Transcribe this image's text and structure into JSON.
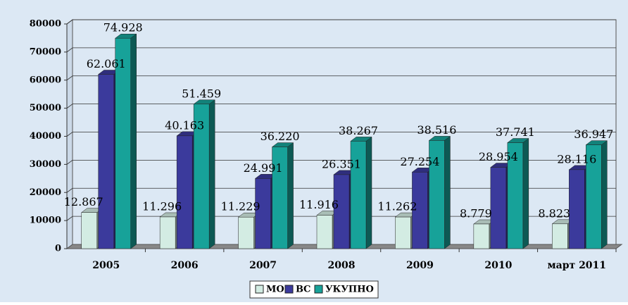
{
  "chart_data": {
    "type": "bar3d",
    "categories": [
      "2005",
      "2006",
      "2007",
      "2008",
      "2009",
      "2010",
      "март 2011"
    ],
    "series": [
      {
        "name": "МО",
        "color": "#d3ece3",
        "values": [
          12867,
          11296,
          11229,
          11916,
          11262,
          8779,
          8823
        ],
        "value_labels": [
          "12.867",
          "11.296",
          "11.229",
          "11.916",
          "11.262",
          "8.779",
          "8.823"
        ]
      },
      {
        "name": "ВС",
        "color": "#3b3a9c",
        "values": [
          62061,
          40163,
          24991,
          26351,
          27254,
          28954,
          28116
        ],
        "value_labels": [
          "62.061",
          "40.163",
          "24.991",
          "26.351",
          "27.254",
          "28.954",
          "28.116"
        ]
      },
      {
        "name": "УКУПНО",
        "color": "#17a299",
        "values": [
          74928,
          51459,
          36220,
          38267,
          38516,
          37741,
          36947
        ],
        "value_labels": [
          "74.928",
          "51.459",
          "36.220",
          "38.267",
          "38.516",
          "37.741",
          "36.947"
        ]
      }
    ],
    "ylim": [
      0,
      80000
    ],
    "yticks": [
      0,
      10000,
      20000,
      30000,
      40000,
      50000,
      60000,
      70000,
      80000
    ],
    "grid": true,
    "legend": "bottom"
  }
}
